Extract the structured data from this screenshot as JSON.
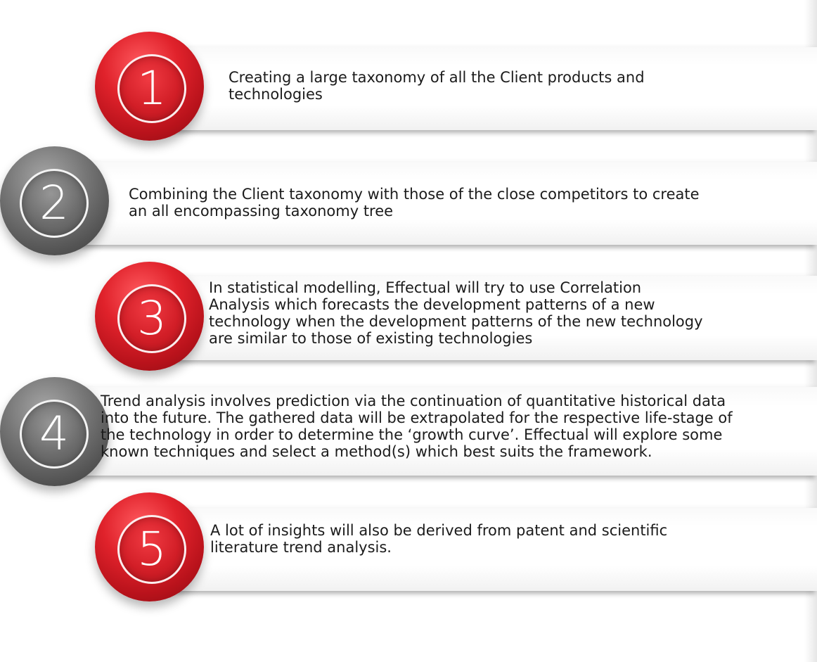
{
  "steps": [
    {
      "number": "1",
      "lines": [
        "Creating a large taxonomy of all the Client products and",
        "technologies"
      ]
    },
    {
      "number": "2",
      "lines": [
        "Combining the Client taxonomy with those of the close competitors to create",
        "an all encompassing taxonomy tree"
      ]
    },
    {
      "number": "3",
      "lines": [
        "In statistical modelling, Effectual will try to use Correlation",
        "Analysis which forecasts the development patterns of a new",
        "technology when the development patterns of the new technology",
        "are similar to those of existing technologies"
      ]
    },
    {
      "number": "4",
      "lines": [
        "Trend analysis involves prediction via the continuation of quantitative historical data",
        "into the future. The gathered data will be extrapolated for the respective life-stage of",
        "the technology in order to determine the ‘growth curve’. Effectual will explore some",
        "known techniques and select a method(s) which best suits the framework."
      ]
    },
    {
      "number": "5",
      "lines": [
        "A lot of insights will also be derived from patent and scientific",
        "literature trend analysis."
      ]
    }
  ],
  "colors": {
    "red": "#d21e27",
    "gray": "#6c6c6c",
    "text": "#1b1b1b"
  }
}
